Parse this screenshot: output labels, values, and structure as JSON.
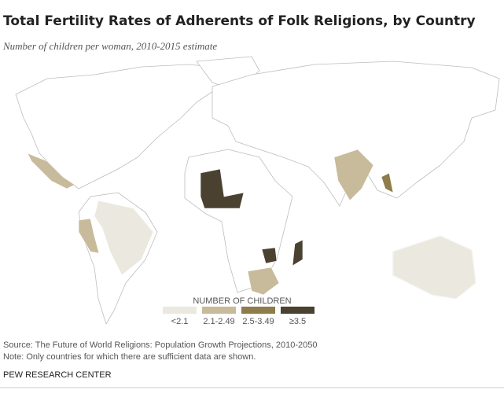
{
  "header": {
    "title": "Total Fertility Rates of Adherents of Folk Religions, by Country",
    "subtitle": "Number of children per woman, 2010-2015 estimate"
  },
  "legend": {
    "title": "NUMBER OF CHILDREN",
    "items": [
      {
        "label": "<2.1",
        "color": "#ebe9df"
      },
      {
        "label": "2.1-2.49",
        "color": "#c8bb9b"
      },
      {
        "label": "2.5-3.49",
        "color": "#8e7c4b"
      },
      {
        "label": "≥3.5",
        "color": "#4a4130"
      }
    ]
  },
  "footer": {
    "source": "Source: The Future of World Religions: Population Growth Projections, 2010-2050",
    "note": "Note: Only countries for which there are sufficient data are shown.",
    "credit": "PEW RESEARCH CENTER"
  }
}
